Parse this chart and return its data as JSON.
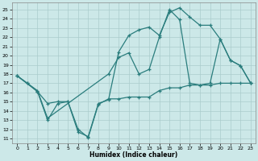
{
  "xlabel": "Humidex (Indice chaleur)",
  "bg_color": "#cce8e8",
  "line_color": "#2a7d7d",
  "grid_color": "#aacccc",
  "xlim": [
    -0.5,
    23.5
  ],
  "ylim": [
    10.5,
    25.8
  ],
  "xticks": [
    0,
    1,
    2,
    3,
    4,
    5,
    6,
    7,
    8,
    9,
    10,
    11,
    12,
    13,
    14,
    15,
    16,
    17,
    18,
    19,
    20,
    21,
    22,
    23
  ],
  "yticks": [
    11,
    12,
    13,
    14,
    15,
    16,
    17,
    18,
    19,
    20,
    21,
    22,
    23,
    24,
    25
  ],
  "line1_x": [
    0,
    1,
    2,
    3,
    4,
    5,
    6,
    7,
    8,
    9,
    10,
    11,
    12,
    13,
    14,
    15,
    16,
    17,
    18,
    19,
    20,
    21,
    22,
    23
  ],
  "line1_y": [
    17.8,
    17.0,
    16.1,
    14.8,
    15.0,
    15.0,
    11.7,
    11.2,
    14.8,
    15.2,
    20.4,
    22.2,
    22.8,
    23.1,
    22.2,
    24.7,
    25.2,
    24.2,
    23.3,
    23.3,
    21.8,
    19.5,
    18.9,
    17.0
  ],
  "line2_x": [
    0,
    2,
    3,
    4,
    5,
    6,
    7,
    8,
    9,
    10,
    11,
    12,
    13,
    14,
    15,
    16,
    17,
    18,
    19,
    20,
    21,
    22,
    23
  ],
  "line2_y": [
    17.8,
    16.1,
    13.0,
    14.8,
    15.0,
    12.0,
    11.1,
    14.7,
    15.3,
    15.3,
    15.5,
    15.5,
    15.5,
    16.2,
    16.5,
    16.5,
    16.8,
    16.8,
    16.8,
    17.0,
    17.0,
    17.0,
    17.0
  ],
  "line3_x": [
    0,
    1,
    2,
    3,
    9,
    10,
    11,
    12,
    13,
    14,
    15,
    16,
    17,
    18,
    19,
    20,
    21,
    22,
    23
  ],
  "line3_y": [
    17.8,
    17.0,
    16.2,
    13.2,
    18.0,
    19.8,
    20.3,
    18.0,
    18.5,
    22.0,
    25.0,
    23.9,
    17.0,
    16.8,
    17.0,
    21.8,
    19.5,
    18.9,
    17.0
  ]
}
